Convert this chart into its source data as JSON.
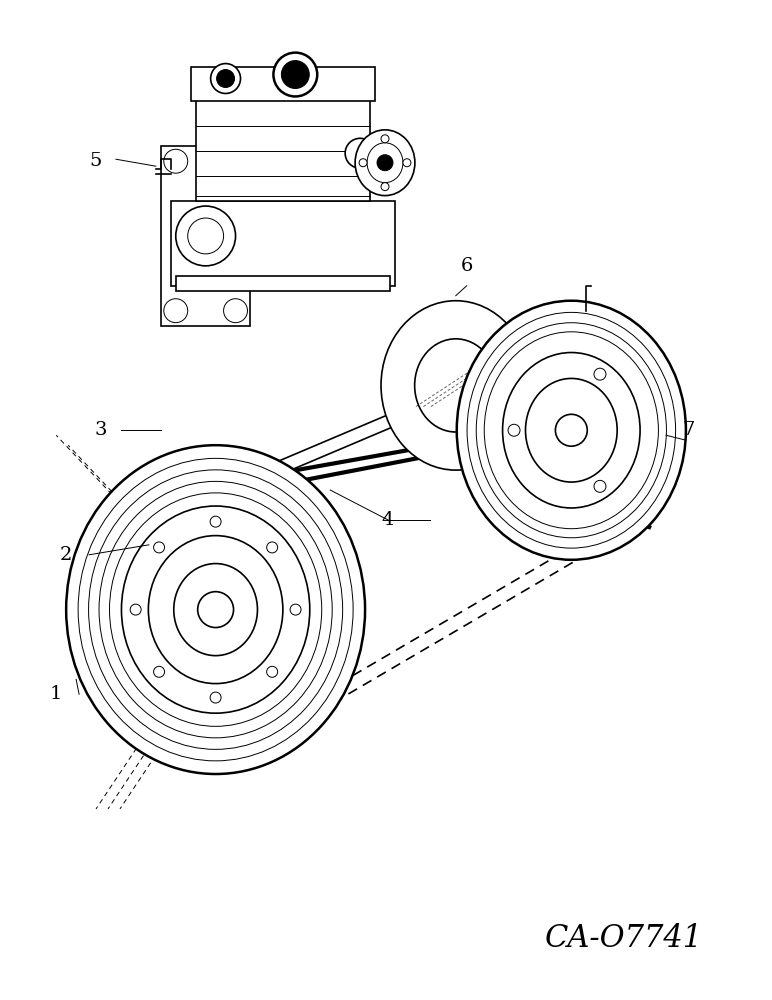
{
  "bg_color": "#ffffff",
  "line_color": "#000000",
  "fig_width": 7.72,
  "fig_height": 10.0,
  "dpi": 100,
  "watermark": "CA-O7741",
  "label_fontsize": 14
}
